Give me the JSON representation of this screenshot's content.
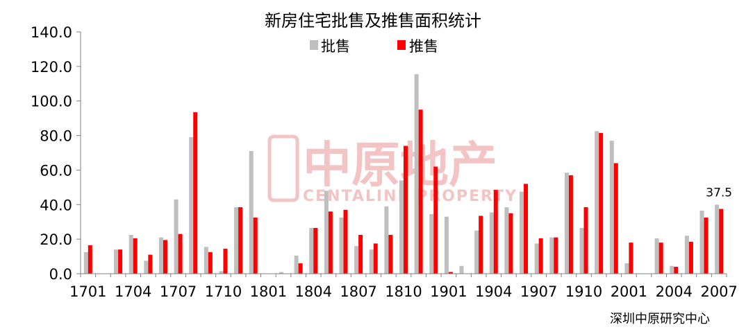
{
  "chart_data": {
    "type": "bar",
    "title": "新房住宅批售及推售面积统计",
    "source": "深圳中原研究中心",
    "xlabel": "",
    "ylabel": "",
    "ylim": [
      0,
      140
    ],
    "yticks": [
      "0.0",
      "20.0",
      "40.0",
      "60.0",
      "80.0",
      "100.0",
      "120.0",
      "140.0"
    ],
    "grid": false,
    "legend": "top-center",
    "colors": {
      "批售": "#bfbfbf",
      "推售": "#ff0000"
    },
    "categories": [
      "1701",
      "1702",
      "1703",
      "1704",
      "1705",
      "1706",
      "1707",
      "1708",
      "1709",
      "1710",
      "1711",
      "1712",
      "1801",
      "1802",
      "1803",
      "1804",
      "1805",
      "1806",
      "1807",
      "1808",
      "1809",
      "1810",
      "1811",
      "1812",
      "1901",
      "1902",
      "1903",
      "1904",
      "1905",
      "1906",
      "1907",
      "1908",
      "1909",
      "1910",
      "1911",
      "1912",
      "2001",
      "2002",
      "2003",
      "2004",
      "2005",
      "2006",
      "2007"
    ],
    "xtick_labels": [
      "1701",
      "1704",
      "1707",
      "1710",
      "1801",
      "1804",
      "1807",
      "1810",
      "1901",
      "1904",
      "1907",
      "1910",
      "2001",
      "2004",
      "2007"
    ],
    "series": [
      {
        "name": "批售",
        "values": [
          12.5,
          0,
          14,
          22.5,
          7.5,
          21,
          43,
          79,
          15.5,
          1.5,
          38.5,
          71,
          0,
          1,
          10.5,
          26.5,
          48,
          32.5,
          16,
          14,
          39,
          54,
          115.5,
          34.5,
          33,
          4.5,
          25,
          35.5,
          38.5,
          47.5,
          17.5,
          21,
          58.5,
          26.5,
          82.5,
          77,
          6,
          0,
          20.5,
          4.5,
          22,
          36.5,
          40
        ]
      },
      {
        "name": "推售",
        "values": [
          16.5,
          0,
          14,
          20.5,
          11,
          19.5,
          23,
          93.5,
          12.5,
          14.5,
          38.5,
          32.5,
          0,
          0,
          6,
          26.5,
          36,
          37,
          22.5,
          17.5,
          22.5,
          74,
          95,
          62,
          1,
          0,
          33.5,
          48.5,
          35,
          52,
          20.5,
          21,
          57,
          38.5,
          81.5,
          64,
          18,
          0,
          18,
          4,
          18.5,
          32.5,
          37.5
        ]
      }
    ],
    "annotations": [
      {
        "category": "2007",
        "series": "推售",
        "text": "37.5"
      }
    ]
  },
  "watermark": {
    "text_cn": "中原地产",
    "text_en": "CENTALINE PROPERTY"
  }
}
